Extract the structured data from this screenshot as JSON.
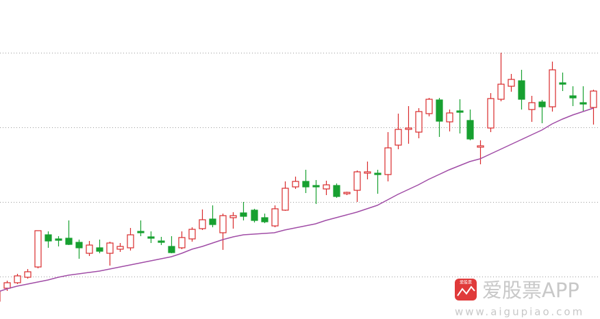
{
  "chart_data": {
    "type": "candlestick",
    "ylim": [
      0,
      466
    ],
    "yticks": [
      62,
      171,
      280,
      389
    ],
    "grid": true,
    "up_color": "#d8282a",
    "down_color": "#17a030",
    "ma_color": "#a04ca6",
    "open": [
      26,
      45,
      53,
      61,
      76,
      123,
      117,
      118,
      112,
      96,
      104,
      96,
      102,
      104,
      128,
      120,
      114,
      106,
      104,
      117,
      132,
      146,
      126,
      148,
      155,
      159,
      148,
      136,
      159,
      193,
      201,
      195,
      190,
      195,
      183,
      188,
      213,
      213,
      211,
      254,
      277,
      273,
      300,
      320,
      288,
      304,
      290,
      251,
      279,
      321,
      340,
      348,
      306,
      317,
      310,
      345,
      326,
      316,
      309
    ],
    "high": [
      44,
      56,
      66,
      73,
      129,
      128,
      121,
      144,
      116,
      114,
      116,
      113,
      111,
      133,
      144,
      128,
      120,
      121,
      128,
      134,
      160,
      166,
      154,
      156,
      171,
      161,
      154,
      166,
      201,
      208,
      218,
      203,
      202,
      198,
      186,
      217,
      230,
      218,
      273,
      300,
      311,
      308,
      323,
      323,
      306,
      321,
      306,
      261,
      330,
      389,
      358,
      364,
      326,
      320,
      376,
      360,
      340,
      340,
      335
    ],
    "low": [
      21,
      41,
      51,
      59,
      74,
      104,
      106,
      108,
      88,
      92,
      96,
      78,
      98,
      100,
      121,
      111,
      108,
      96,
      102,
      113,
      130,
      134,
      101,
      132,
      144,
      141,
      140,
      134,
      158,
      190,
      184,
      168,
      181,
      177,
      181,
      171,
      204,
      183,
      201,
      248,
      256,
      264,
      296,
      266,
      274,
      271,
      261,
      226,
      273,
      318,
      332,
      306,
      288,
      286,
      303,
      333,
      311,
      304,
      284
    ],
    "close": [
      41,
      53,
      63,
      69,
      129,
      114,
      115,
      109,
      104,
      108,
      99,
      111,
      106,
      123,
      126,
      118,
      112,
      97,
      119,
      131,
      145,
      138,
      151,
      151,
      150,
      144,
      142,
      161,
      191,
      201,
      193,
      193,
      196,
      179,
      185,
      215,
      215,
      211,
      250,
      277,
      279,
      303,
      321,
      289,
      301,
      302,
      263,
      253,
      322,
      343,
      350,
      321,
      316,
      310,
      364,
      343,
      323,
      314,
      333
    ],
    "ma": [
      39,
      44,
      48,
      51,
      54,
      57,
      61,
      64,
      66,
      68,
      70,
      73,
      76,
      79,
      82,
      85,
      88,
      91,
      96,
      102,
      106,
      111,
      116,
      120,
      123,
      124,
      125,
      126,
      130,
      133,
      136,
      139,
      144,
      148,
      152,
      156,
      161,
      166,
      174,
      182,
      189,
      196,
      204,
      211,
      218,
      224,
      230,
      234,
      241,
      248,
      255,
      262,
      269,
      276,
      285,
      292,
      298,
      303,
      308
    ]
  },
  "watermark": {
    "logo_text": "爱股票",
    "brand": "爱股票APP",
    "url": "www.aigupiao.com"
  }
}
